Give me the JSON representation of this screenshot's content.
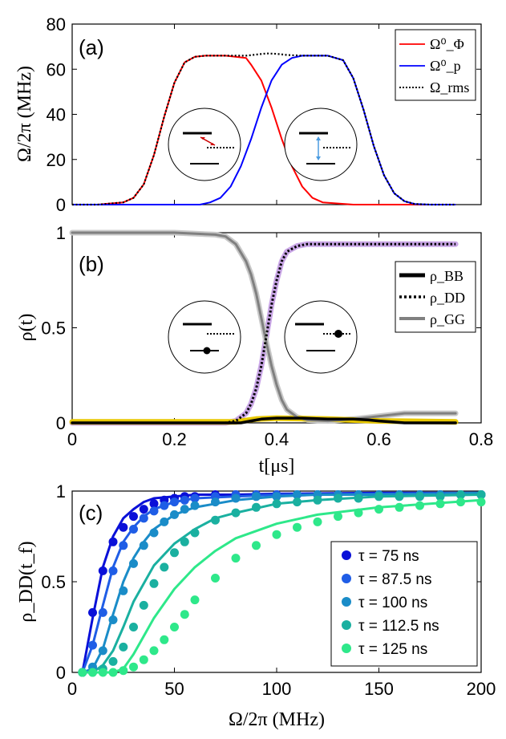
{
  "chart_data": [
    {
      "type": "line",
      "panel_label": "(a)",
      "ylabel": "Ω/2π (MHz)",
      "xlim": [
        0,
        0.8
      ],
      "ylim": [
        0,
        80
      ],
      "yticks": [
        "0",
        "20",
        "40",
        "60",
        "80"
      ],
      "legend_position": "top-right",
      "series": [
        {
          "name": "Ω⁰_Φ",
          "color": "#ff0000",
          "x": [
            0,
            0.05,
            0.1,
            0.12,
            0.14,
            0.16,
            0.18,
            0.2,
            0.22,
            0.24,
            0.26,
            0.3,
            0.34,
            0.35,
            0.37,
            0.39,
            0.41,
            0.43,
            0.45,
            0.47,
            0.49,
            0.52,
            0.55,
            0.6,
            0.75
          ],
          "y": [
            0,
            0,
            1,
            3,
            9,
            22,
            39,
            54,
            63,
            65.5,
            66,
            66,
            65,
            62,
            55,
            43,
            29,
            17,
            8,
            3,
            1,
            0.5,
            0,
            0,
            0
          ]
        },
        {
          "name": "Ω⁰_p",
          "color": "#0000ff",
          "x": [
            0,
            0.1,
            0.2,
            0.25,
            0.27,
            0.29,
            0.31,
            0.33,
            0.35,
            0.37,
            0.39,
            0.41,
            0.43,
            0.45,
            0.5,
            0.53,
            0.55,
            0.57,
            0.59,
            0.61,
            0.63,
            0.65,
            0.67,
            0.7,
            0.75
          ],
          "y": [
            0,
            0,
            0,
            0,
            1,
            3,
            8,
            17,
            29,
            43,
            55,
            62,
            65,
            66,
            66,
            64,
            56,
            42,
            26,
            13,
            5,
            1.5,
            0.3,
            0,
            0
          ]
        },
        {
          "name": "Ω_rms",
          "color": "#000000",
          "style": "dotted",
          "x": [
            0,
            0.05,
            0.1,
            0.12,
            0.14,
            0.16,
            0.18,
            0.2,
            0.22,
            0.24,
            0.26,
            0.3,
            0.34,
            0.36,
            0.38,
            0.4,
            0.42,
            0.45,
            0.5,
            0.53,
            0.55,
            0.57,
            0.59,
            0.61,
            0.63,
            0.65,
            0.67,
            0.7,
            0.75
          ],
          "y": [
            0,
            0,
            1,
            3,
            9,
            22,
            39,
            54,
            63,
            65.5,
            66,
            66,
            66,
            66.5,
            67,
            66.8,
            66.3,
            66,
            66,
            64,
            56,
            42,
            26,
            13,
            5,
            1.5,
            0.3,
            0,
            0
          ]
        }
      ]
    },
    {
      "type": "line",
      "panel_label": "(b)",
      "xlabel": "t[μs]",
      "ylabel": "ρ(t)",
      "xlim": [
        0,
        0.8
      ],
      "ylim": [
        0,
        1
      ],
      "xticks": [
        "0",
        "0.2",
        "0.4",
        "0.6",
        "0.8"
      ],
      "yticks": [
        "0",
        "0.5",
        "1"
      ],
      "legend_position": "middle-right",
      "series": [
        {
          "name": "ρ_BB",
          "color": "#000000",
          "style": "thick",
          "x": [
            0,
            0.33,
            0.35,
            0.37,
            0.4,
            0.45,
            0.5,
            0.55,
            0.58,
            0.6,
            0.65,
            0.75
          ],
          "y": [
            0,
            0,
            0.01,
            0.02,
            0.025,
            0.025,
            0.02,
            0.02,
            0.015,
            0.01,
            0,
            0
          ]
        },
        {
          "name": "ρ_DD",
          "color": "#000000",
          "style": "dotted",
          "x": [
            0,
            0.3,
            0.32,
            0.34,
            0.35,
            0.36,
            0.37,
            0.38,
            0.39,
            0.4,
            0.41,
            0.42,
            0.44,
            0.46,
            0.5,
            0.75
          ],
          "y": [
            0,
            0,
            0.01,
            0.05,
            0.1,
            0.18,
            0.3,
            0.46,
            0.62,
            0.75,
            0.85,
            0.9,
            0.93,
            0.94,
            0.94,
            0.94
          ]
        },
        {
          "name": "ρ_GG",
          "color": "#808080",
          "style": "thick",
          "x": [
            0,
            0.2,
            0.28,
            0.3,
            0.32,
            0.34,
            0.35,
            0.36,
            0.37,
            0.38,
            0.39,
            0.4,
            0.41,
            0.42,
            0.44,
            0.46,
            0.5,
            0.55,
            0.6,
            0.65,
            0.75
          ],
          "y": [
            1,
            1,
            0.99,
            0.98,
            0.94,
            0.85,
            0.78,
            0.68,
            0.55,
            0.42,
            0.3,
            0.2,
            0.12,
            0.07,
            0.03,
            0.015,
            0.01,
            0.02,
            0.035,
            0.05,
            0.05
          ]
        },
        {
          "name": "ρ_DD (target)",
          "color": "#c9a6e6",
          "legend": false,
          "x": [
            0,
            0.3,
            0.32,
            0.34,
            0.35,
            0.36,
            0.37,
            0.38,
            0.39,
            0.4,
            0.41,
            0.42,
            0.44,
            0.46,
            0.5,
            0.75
          ],
          "y": [
            0,
            0,
            0.01,
            0.05,
            0.1,
            0.18,
            0.3,
            0.46,
            0.62,
            0.75,
            0.85,
            0.9,
            0.93,
            0.94,
            0.94,
            0.94
          ]
        },
        {
          "name": "ρ_GG (target)",
          "color": "#c8c8c8",
          "legend": false,
          "x": [
            0,
            0.2,
            0.28,
            0.3,
            0.32,
            0.34,
            0.35,
            0.36,
            0.37,
            0.38,
            0.39,
            0.4,
            0.41,
            0.42,
            0.44,
            0.46,
            0.5,
            0.55,
            0.6,
            0.65,
            0.75
          ],
          "y": [
            1,
            1,
            0.99,
            0.98,
            0.94,
            0.85,
            0.78,
            0.68,
            0.55,
            0.42,
            0.3,
            0.2,
            0.12,
            0.07,
            0.03,
            0.015,
            0.01,
            0.02,
            0.035,
            0.05,
            0.05
          ]
        },
        {
          "name": "ρ_BB (target)",
          "color": "#e8c800",
          "legend": false,
          "x": [
            0,
            0.32,
            0.36,
            0.4,
            0.5,
            0.6,
            0.75
          ],
          "y": [
            0.005,
            0.005,
            0.02,
            0.025,
            0.02,
            0.01,
            0.005
          ]
        }
      ]
    },
    {
      "type": "scatter",
      "panel_label": "(c)",
      "xlabel": "Ω/2π (MHz)",
      "ylabel": "ρ_DD(t_f)",
      "xlim": [
        0,
        200
      ],
      "ylim": [
        0,
        1
      ],
      "xticks": [
        "0",
        "50",
        "100",
        "150",
        "200"
      ],
      "yticks": [
        "0",
        "0.5",
        "1"
      ],
      "legend_position": "bottom-right",
      "series": [
        {
          "name": "τ = 75 ns",
          "color": "#0a10d8",
          "points_x": [
            5,
            10,
            15,
            20,
            25,
            30,
            35,
            40,
            45,
            50,
            55,
            60,
            70,
            80,
            90,
            100,
            110,
            120,
            130,
            140,
            150,
            160,
            170,
            180,
            190,
            200
          ],
          "points_y": [
            0,
            0.33,
            0.56,
            0.72,
            0.8,
            0.86,
            0.9,
            0.93,
            0.95,
            0.96,
            0.97,
            0.97,
            0.98,
            0.98,
            0.98,
            0.98,
            0.98,
            0.98,
            0.98,
            0.98,
            0.98,
            0.98,
            0.98,
            0.98,
            0.98,
            0.98
          ],
          "line_x": [
            5,
            10,
            15,
            20,
            25,
            30,
            35,
            40,
            50,
            60,
            80,
            100,
            150,
            200
          ],
          "line_y": [
            0,
            0.3,
            0.58,
            0.75,
            0.85,
            0.9,
            0.94,
            0.96,
            0.97,
            0.98,
            0.98,
            0.985,
            0.99,
            0.99
          ]
        },
        {
          "name": "τ = 87.5 ns",
          "color": "#1f5de6",
          "points_x": [
            5,
            10,
            15,
            20,
            25,
            30,
            35,
            40,
            45,
            50,
            55,
            60,
            70,
            80,
            90,
            100,
            110,
            120,
            130,
            140,
            150,
            160,
            170,
            180,
            190,
            200
          ],
          "points_y": [
            0,
            0.15,
            0.33,
            0.56,
            0.7,
            0.79,
            0.85,
            0.89,
            0.92,
            0.94,
            0.95,
            0.96,
            0.97,
            0.98,
            0.98,
            0.98,
            0.98,
            0.98,
            0.98,
            0.98,
            0.98,
            0.98,
            0.98,
            0.98,
            0.98,
            0.98
          ],
          "line_x": [
            5,
            10,
            15,
            20,
            25,
            30,
            35,
            40,
            50,
            60,
            80,
            100,
            150,
            200
          ],
          "line_y": [
            0,
            0.15,
            0.37,
            0.58,
            0.72,
            0.8,
            0.86,
            0.9,
            0.94,
            0.96,
            0.97,
            0.98,
            0.985,
            0.99
          ]
        },
        {
          "name": "τ = 100 ns",
          "color": "#1a8cc8",
          "points_x": [
            5,
            10,
            15,
            20,
            25,
            30,
            35,
            40,
            45,
            50,
            55,
            60,
            70,
            80,
            90,
            100,
            110,
            120,
            130,
            140,
            150,
            160,
            170,
            180,
            190,
            200
          ],
          "points_y": [
            0,
            0.03,
            0.12,
            0.29,
            0.45,
            0.6,
            0.7,
            0.77,
            0.83,
            0.87,
            0.9,
            0.92,
            0.94,
            0.96,
            0.97,
            0.97,
            0.98,
            0.98,
            0.98,
            0.98,
            0.98,
            0.98,
            0.98,
            0.98,
            0.98,
            0.98
          ],
          "line_x": [
            5,
            10,
            15,
            20,
            25,
            30,
            35,
            40,
            50,
            60,
            70,
            80,
            100,
            120,
            150,
            200
          ],
          "line_y": [
            0,
            0.02,
            0.13,
            0.32,
            0.5,
            0.63,
            0.72,
            0.79,
            0.87,
            0.91,
            0.93,
            0.95,
            0.97,
            0.98,
            0.98,
            0.99
          ]
        },
        {
          "name": "τ = 112.5 ns",
          "color": "#1ab0a0",
          "points_x": [
            5,
            10,
            15,
            20,
            25,
            30,
            35,
            40,
            45,
            50,
            55,
            60,
            70,
            80,
            90,
            100,
            110,
            120,
            130,
            140,
            150,
            160,
            170,
            180,
            190,
            200
          ],
          "points_y": [
            0,
            0,
            0.02,
            0.06,
            0.14,
            0.25,
            0.37,
            0.49,
            0.58,
            0.66,
            0.72,
            0.77,
            0.84,
            0.88,
            0.91,
            0.93,
            0.94,
            0.95,
            0.96,
            0.96,
            0.97,
            0.97,
            0.97,
            0.97,
            0.98,
            0.98
          ],
          "line_x": [
            5,
            10,
            15,
            20,
            25,
            30,
            40,
            50,
            60,
            70,
            80,
            100,
            120,
            150,
            200
          ],
          "line_y": [
            0,
            0,
            0.04,
            0.12,
            0.25,
            0.39,
            0.59,
            0.71,
            0.79,
            0.85,
            0.88,
            0.93,
            0.95,
            0.97,
            0.98
          ]
        },
        {
          "name": "τ = 125 ns",
          "color": "#2ee88a",
          "points_x": [
            5,
            10,
            15,
            20,
            25,
            30,
            35,
            40,
            45,
            50,
            55,
            60,
            70,
            80,
            90,
            100,
            110,
            120,
            130,
            140,
            150,
            160,
            170,
            180,
            190,
            200
          ],
          "points_y": [
            0,
            0,
            0,
            0,
            0.01,
            0.03,
            0.07,
            0.12,
            0.18,
            0.25,
            0.32,
            0.4,
            0.52,
            0.63,
            0.7,
            0.76,
            0.8,
            0.83,
            0.86,
            0.88,
            0.9,
            0.91,
            0.92,
            0.93,
            0.94,
            0.94
          ],
          "line_x": [
            5,
            10,
            15,
            20,
            25,
            30,
            35,
            40,
            50,
            60,
            70,
            80,
            100,
            120,
            150,
            200
          ],
          "line_y": [
            0,
            0,
            0,
            0,
            0.02,
            0.1,
            0.2,
            0.3,
            0.46,
            0.58,
            0.67,
            0.74,
            0.82,
            0.87,
            0.91,
            0.95
          ]
        }
      ]
    }
  ],
  "legend_a": {
    "phi": "Ω⁰_Φ",
    "p": "Ω⁰_p",
    "rms": "Ω_rms"
  },
  "legend_b": {
    "bb": "ρ_BB",
    "dd": "ρ_DD",
    "gg": "ρ_GG"
  },
  "legend_c": [
    "τ = 75 ns",
    "τ = 87.5 ns",
    "τ = 100 ns",
    "τ = 112.5 ns",
    "τ = 125 ns"
  ]
}
